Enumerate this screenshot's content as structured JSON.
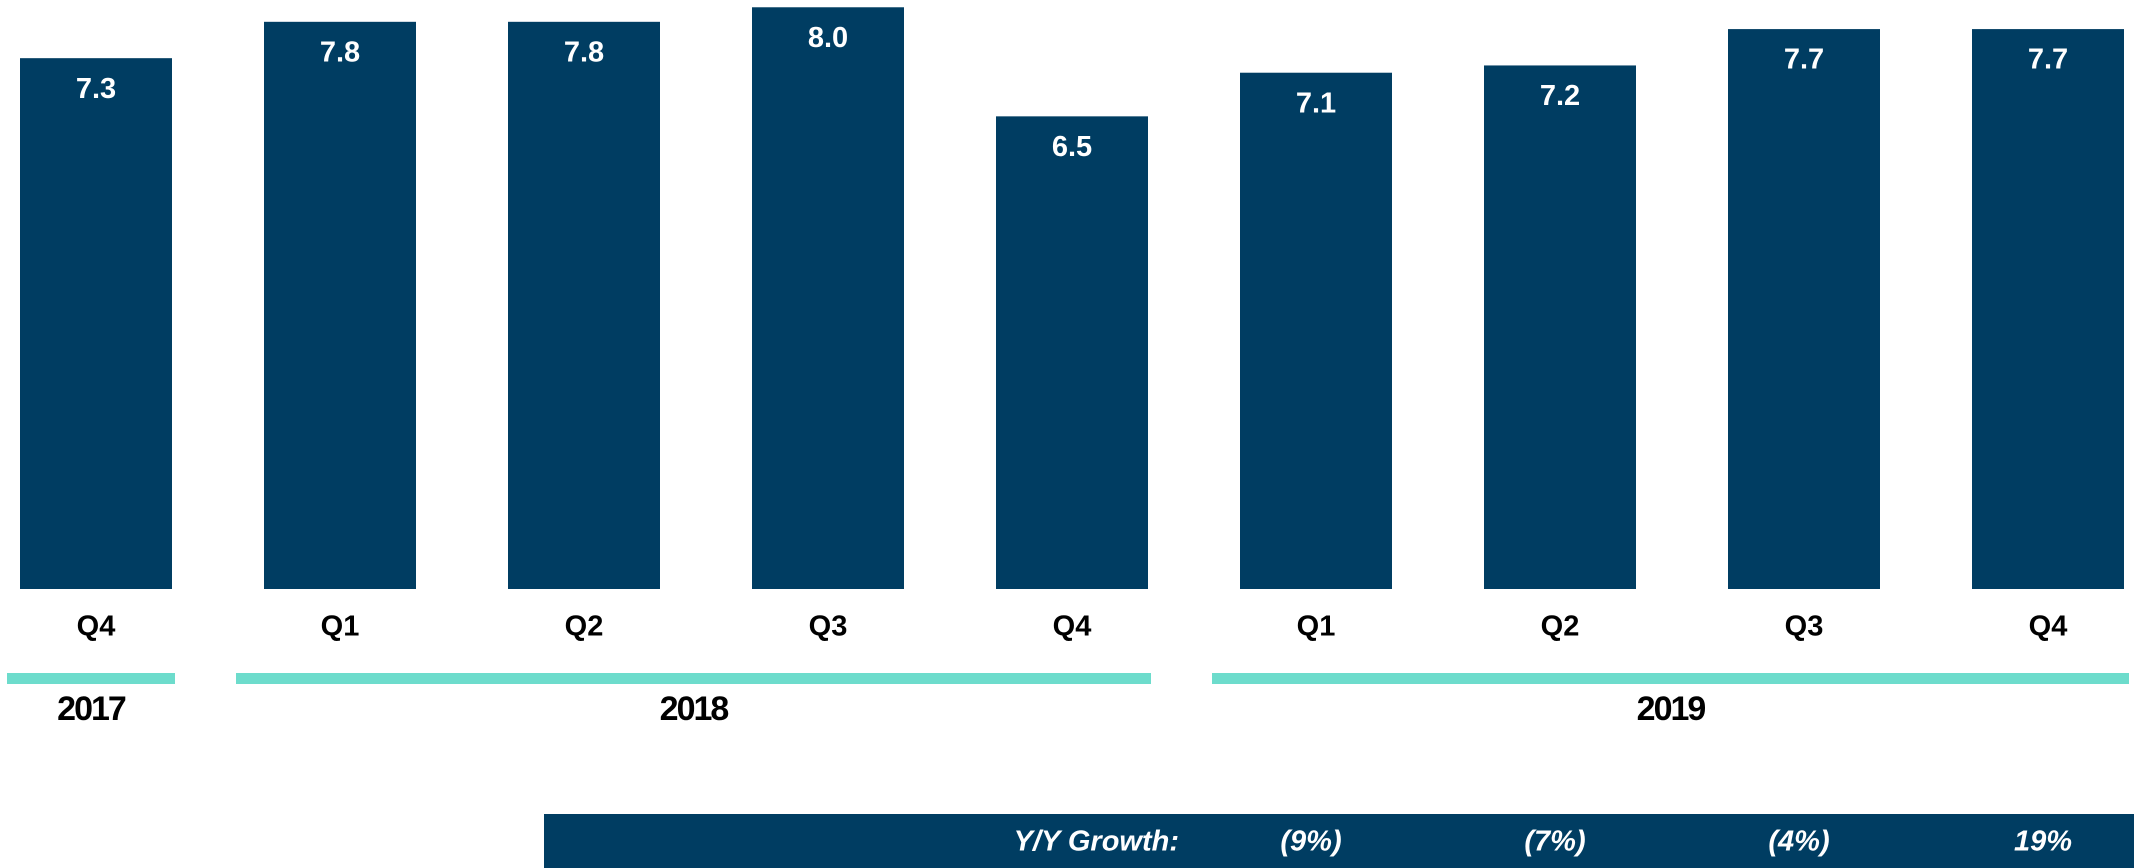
{
  "chart_data": {
    "type": "bar",
    "categories": [
      "Q4",
      "Q1",
      "Q2",
      "Q3",
      "Q4",
      "Q1",
      "Q2",
      "Q3",
      "Q4"
    ],
    "values": [
      7.3,
      7.8,
      7.8,
      8.0,
      6.5,
      7.1,
      7.2,
      7.7,
      7.7
    ],
    "value_labels": [
      "7.3",
      "7.8",
      "7.8",
      "8.0",
      "6.5",
      "7.1",
      "7.2",
      "7.7",
      "7.7"
    ],
    "color": "#003d62",
    "group_color": "#6ddccc",
    "ylim": [
      0,
      8.1
    ],
    "groups": [
      {
        "label": "2017",
        "categories": [
          "Q4"
        ]
      },
      {
        "label": "2018",
        "categories": [
          "Q1",
          "Q2",
          "Q3",
          "Q4"
        ]
      },
      {
        "label": "2019",
        "categories": [
          "Q1",
          "Q2",
          "Q3",
          "Q4"
        ]
      }
    ],
    "growth": {
      "label": "Y/Y Growth:",
      "values": [
        -9,
        -7,
        -4,
        19
      ],
      "value_labels": [
        "(9%)",
        "(7%)",
        "(4%)",
        "19%"
      ]
    }
  }
}
